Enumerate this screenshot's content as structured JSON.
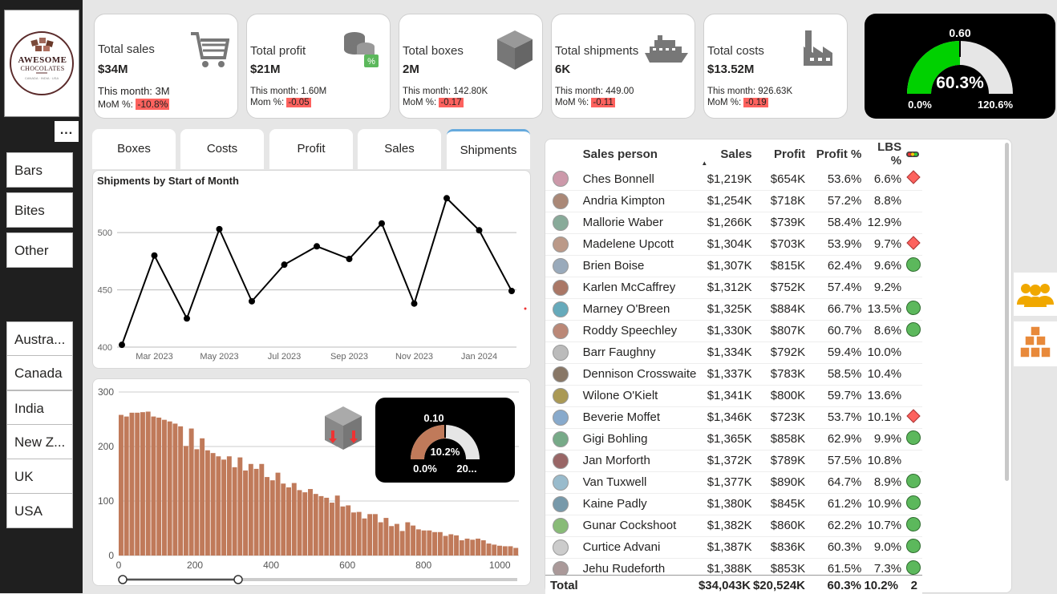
{
  "logo": {
    "line1": "AWESOME",
    "line2": "CHOCOLATES"
  },
  "more_label": "...",
  "product_slicer": [
    "Bars",
    "Bites",
    "Other"
  ],
  "country_slicer": [
    "Austra...",
    "Canada",
    "India",
    "New Z...",
    "UK",
    "USA"
  ],
  "kpis": [
    {
      "title": "Total sales",
      "value": "$34M",
      "month": "This month: 3M",
      "mom_label": "MoM %:",
      "mom": "-10.8%",
      "icon": "cart-icon"
    },
    {
      "title": "Total profit",
      "value": "$21M",
      "month": "This month: 1.60M",
      "mom_label": "Mom %:",
      "mom": "-0.05",
      "icon": "coins-icon"
    },
    {
      "title": "Total boxes",
      "value": "2M",
      "month": "This month: 142.80K",
      "mom_label": "MoM %:",
      "mom": "-0.17",
      "icon": "box-icon"
    },
    {
      "title": "Total shipments",
      "value": "6K",
      "month": "This month: 449.00",
      "mom_label": "MoM %:",
      "mom": "-0.11",
      "icon": "ship-icon"
    },
    {
      "title": "Total costs",
      "value": "$13.52M",
      "month": "This month: 926.63K",
      "mom_label": "MoM %:",
      "mom": "-0.19",
      "icon": "factory-icon"
    }
  ],
  "gauge": {
    "target": "0.60",
    "value": "60.3%",
    "min": "0.0%",
    "max": "120.6%",
    "fraction": 0.5
  },
  "tabs": [
    "Boxes",
    "Costs",
    "Profit",
    "Sales",
    "Shipments"
  ],
  "active_tab": "Shipments",
  "line_chart": {
    "title": "Shipments by Start of Month"
  },
  "small_gauge": {
    "target": "0.10",
    "value": "10.2%",
    "min": "0.0%",
    "max": "20...",
    "fraction": 0.51
  },
  "chart_data": [
    {
      "type": "line",
      "title": "Shipments by Start of Month",
      "x": [
        "Feb 2023",
        "Mar 2023",
        "Apr 2023",
        "May 2023",
        "Jun 2023",
        "Jul 2023",
        "Aug 2023",
        "Sep 2023",
        "Oct 2023",
        "Nov 2023",
        "Dec 2023",
        "Jan 2024",
        "Feb 2024"
      ],
      "y": [
        402,
        480,
        425,
        503,
        440,
        472,
        488,
        477,
        508,
        438,
        530,
        502,
        449
      ],
      "x_ticks": [
        "Mar 2023",
        "May 2023",
        "Jul 2023",
        "Sep 2023",
        "Nov 2023",
        "Jan 2024"
      ],
      "y_ticks": [
        "400",
        "450",
        "500"
      ],
      "ylim": [
        400,
        540
      ],
      "grid": true
    },
    {
      "type": "bar",
      "x_ticks": [
        "0",
        "200",
        "400",
        "600",
        "800",
        "1000"
      ],
      "y_ticks": [
        "0",
        "100",
        "200",
        "300"
      ],
      "ylim": [
        0,
        300
      ],
      "xlim": [
        0,
        1050
      ],
      "values": [
        258,
        255,
        262,
        262,
        263,
        264,
        255,
        253,
        249,
        246,
        242,
        237,
        201,
        233,
        195,
        215,
        193,
        188,
        182,
        176,
        182,
        162,
        180,
        156,
        168,
        159,
        168,
        144,
        138,
        152,
        132,
        125,
        133,
        120,
        116,
        122,
        113,
        109,
        106,
        97,
        110,
        90,
        92,
        79,
        80,
        68,
        76,
        76,
        61,
        69,
        54,
        58,
        45,
        61,
        55,
        48,
        46,
        46,
        43,
        43,
        36,
        39,
        37,
        28,
        31,
        29,
        31,
        28,
        22,
        20,
        18,
        17,
        17,
        14
      ]
    }
  ],
  "table": {
    "headers": [
      "Sales person",
      "Sales",
      "Profit",
      "Profit %",
      "LBS %"
    ],
    "rows": [
      {
        "name": "Ches Bonnell",
        "sales": "$1,219K",
        "profit": "$654K",
        "pct": "53.6%",
        "lbs": "6.6%",
        "ind": "diamond"
      },
      {
        "name": "Andria Kimpton",
        "sales": "$1,254K",
        "profit": "$718K",
        "pct": "57.2%",
        "lbs": "8.8%",
        "ind": ""
      },
      {
        "name": "Mallorie Waber",
        "sales": "$1,266K",
        "profit": "$739K",
        "pct": "58.4%",
        "lbs": "12.9%",
        "ind": ""
      },
      {
        "name": "Madelene Upcott",
        "sales": "$1,304K",
        "profit": "$703K",
        "pct": "53.9%",
        "lbs": "9.7%",
        "ind": "diamond"
      },
      {
        "name": "Brien Boise",
        "sales": "$1,307K",
        "profit": "$815K",
        "pct": "62.4%",
        "lbs": "9.6%",
        "ind": "circle"
      },
      {
        "name": "Karlen McCaffrey",
        "sales": "$1,312K",
        "profit": "$752K",
        "pct": "57.4%",
        "lbs": "9.2%",
        "ind": ""
      },
      {
        "name": "Marney O'Breen",
        "sales": "$1,325K",
        "profit": "$884K",
        "pct": "66.7%",
        "lbs": "13.5%",
        "ind": "circle"
      },
      {
        "name": "Roddy Speechley",
        "sales": "$1,330K",
        "profit": "$807K",
        "pct": "60.7%",
        "lbs": "8.6%",
        "ind": "circle"
      },
      {
        "name": "Barr Faughny",
        "sales": "$1,334K",
        "profit": "$792K",
        "pct": "59.4%",
        "lbs": "10.0%",
        "ind": ""
      },
      {
        "name": "Dennison Crosswaite",
        "sales": "$1,337K",
        "profit": "$783K",
        "pct": "58.5%",
        "lbs": "10.4%",
        "ind": ""
      },
      {
        "name": "Wilone O'Kielt",
        "sales": "$1,341K",
        "profit": "$800K",
        "pct": "59.7%",
        "lbs": "13.6%",
        "ind": ""
      },
      {
        "name": "Beverie Moffet",
        "sales": "$1,346K",
        "profit": "$723K",
        "pct": "53.7%",
        "lbs": "10.1%",
        "ind": "diamond"
      },
      {
        "name": "Gigi Bohling",
        "sales": "$1,365K",
        "profit": "$858K",
        "pct": "62.9%",
        "lbs": "9.9%",
        "ind": "circle"
      },
      {
        "name": "Jan Morforth",
        "sales": "$1,372K",
        "profit": "$789K",
        "pct": "57.5%",
        "lbs": "10.8%",
        "ind": ""
      },
      {
        "name": "Van Tuxwell",
        "sales": "$1,377K",
        "profit": "$890K",
        "pct": "64.7%",
        "lbs": "8.9%",
        "ind": "circle"
      },
      {
        "name": "Kaine Padly",
        "sales": "$1,380K",
        "profit": "$845K",
        "pct": "61.2%",
        "lbs": "10.9%",
        "ind": "circle"
      },
      {
        "name": "Gunar Cockshoot",
        "sales": "$1,382K",
        "profit": "$860K",
        "pct": "62.2%",
        "lbs": "10.7%",
        "ind": "circle"
      },
      {
        "name": "Curtice Advani",
        "sales": "$1,387K",
        "profit": "$836K",
        "pct": "60.3%",
        "lbs": "9.0%",
        "ind": "circle"
      },
      {
        "name": "Jehu Rudeforth",
        "sales": "$1,388K",
        "profit": "$853K",
        "pct": "61.5%",
        "lbs": "7.3%",
        "ind": "circle"
      }
    ],
    "total": {
      "label": "Total",
      "sales": "$34,043K",
      "profit": "$20,524K",
      "pct": "60.3%",
      "lbs": "10.2%",
      "ind": "2"
    }
  },
  "colors": {
    "accent": "#c07a5a",
    "green": "#00d100",
    "red": "#fd625e",
    "circle": "#5cb85c"
  }
}
